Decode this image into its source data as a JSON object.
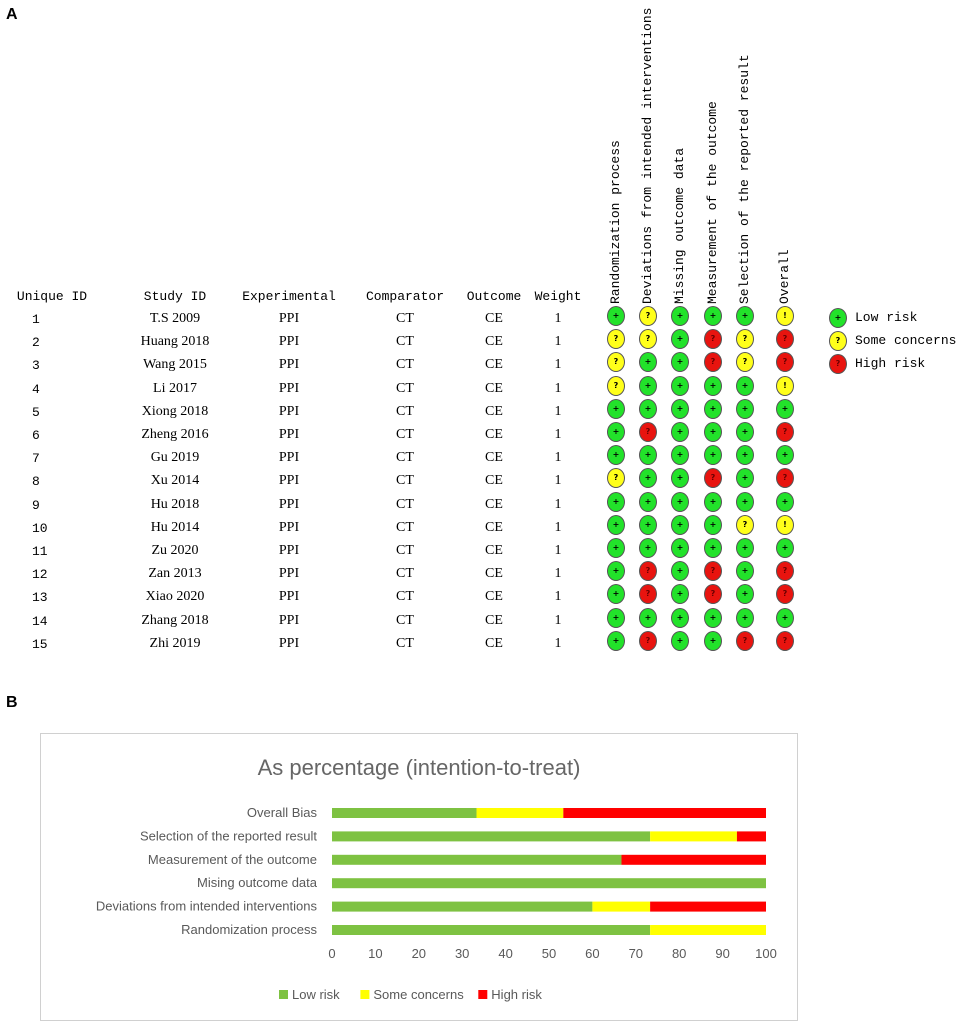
{
  "panel_a_label": "A",
  "panel_b_label": "B",
  "table": {
    "headers": [
      "Unique ID",
      "Study ID",
      "Experimental",
      "Comparator",
      "Outcome",
      "Weight"
    ],
    "domain_headers": [
      "Randomization process",
      "Deviations from intended interventions",
      "Missing outcome data",
      "Measurement of the outcome",
      "Selection of the reported result",
      "Overall"
    ],
    "rows": [
      {
        "id": "1",
        "study": "T.S 2009",
        "exp": "PPI",
        "comp": "CT",
        "outcome": "CE",
        "weight": "1",
        "risk": [
          "low",
          "some",
          "low",
          "low",
          "low",
          "some"
        ]
      },
      {
        "id": "2",
        "study": "Huang 2018",
        "exp": "PPI",
        "comp": "CT",
        "outcome": "CE",
        "weight": "1",
        "risk": [
          "some",
          "some",
          "low",
          "high",
          "some",
          "high"
        ]
      },
      {
        "id": "3",
        "study": "Wang 2015",
        "exp": "PPI",
        "comp": "CT",
        "outcome": "CE",
        "weight": "1",
        "risk": [
          "some",
          "low",
          "low",
          "high",
          "some",
          "high"
        ]
      },
      {
        "id": "4",
        "study": "Li 2017",
        "exp": "PPI",
        "comp": "CT",
        "outcome": "CE",
        "weight": "1",
        "risk": [
          "some",
          "low",
          "low",
          "low",
          "low",
          "some"
        ]
      },
      {
        "id": "5",
        "study": "Xiong 2018",
        "exp": "PPI",
        "comp": "CT",
        "outcome": "CE",
        "weight": "1",
        "risk": [
          "low",
          "low",
          "low",
          "low",
          "low",
          "low"
        ]
      },
      {
        "id": "6",
        "study": "Zheng 2016",
        "exp": "PPI",
        "comp": "CT",
        "outcome": "CE",
        "weight": "1",
        "risk": [
          "low",
          "high",
          "low",
          "low",
          "low",
          "high"
        ]
      },
      {
        "id": "7",
        "study": "Gu 2019",
        "exp": "PPI",
        "comp": "CT",
        "outcome": "CE",
        "weight": "1",
        "risk": [
          "low",
          "low",
          "low",
          "low",
          "low",
          "low"
        ]
      },
      {
        "id": "8",
        "study": "Xu 2014",
        "exp": "PPI",
        "comp": "CT",
        "outcome": "CE",
        "weight": "1",
        "risk": [
          "some",
          "low",
          "low",
          "high",
          "low",
          "high"
        ]
      },
      {
        "id": "9",
        "study": "Hu 2018",
        "exp": "PPI",
        "comp": "CT",
        "outcome": "CE",
        "weight": "1",
        "risk": [
          "low",
          "low",
          "low",
          "low",
          "low",
          "low"
        ]
      },
      {
        "id": "10",
        "study": "Hu 2014",
        "exp": "PPI",
        "comp": "CT",
        "outcome": "CE",
        "weight": "1",
        "risk": [
          "low",
          "low",
          "low",
          "low",
          "some",
          "some"
        ]
      },
      {
        "id": "11",
        "study": "Zu 2020",
        "exp": "PPI",
        "comp": "CT",
        "outcome": "CE",
        "weight": "1",
        "risk": [
          "low",
          "low",
          "low",
          "low",
          "low",
          "low"
        ]
      },
      {
        "id": "12",
        "study": "Zan 2013",
        "exp": "PPI",
        "comp": "CT",
        "outcome": "CE",
        "weight": "1",
        "risk": [
          "low",
          "high",
          "low",
          "high",
          "low",
          "high"
        ]
      },
      {
        "id": "13",
        "study": "Xiao 2020",
        "exp": "PPI",
        "comp": "CT",
        "outcome": "CE",
        "weight": "1",
        "risk": [
          "low",
          "high",
          "low",
          "high",
          "low",
          "high"
        ]
      },
      {
        "id": "14",
        "study": "Zhang 2018",
        "exp": "PPI",
        "comp": "CT",
        "outcome": "CE",
        "weight": "1",
        "risk": [
          "low",
          "low",
          "low",
          "low",
          "low",
          "low"
        ]
      },
      {
        "id": "15",
        "study": "Zhi 2019",
        "exp": "PPI",
        "comp": "CT",
        "outcome": "CE",
        "weight": "1",
        "risk": [
          "low",
          "high",
          "low",
          "low",
          "high",
          "high"
        ]
      }
    ],
    "symbols": {
      "low": "+",
      "some": "?",
      "high": "?",
      "overall_some": "!"
    },
    "legend": [
      {
        "key": "low",
        "symbol": "+",
        "label": "Low risk"
      },
      {
        "key": "some",
        "symbol": "?",
        "label": "Some concerns"
      },
      {
        "key": "high",
        "symbol": "?",
        "label": "High risk"
      }
    ]
  },
  "colors": {
    "dot_low": "#22e22a",
    "dot_some": "#ffff1a",
    "dot_high": "#e8140f",
    "bar_low": "#7ec242",
    "bar_some": "#ffff00",
    "bar_high": "#ff0000",
    "axis_text": "#555555"
  },
  "chart_data": {
    "type": "bar",
    "orientation": "horizontal",
    "stacked": true,
    "title": "As percentage (intention-to-treat)",
    "categories": [
      "Overall Bias",
      "Selection of the reported result",
      "Measurement of the outcome",
      "Mising outcome data",
      "Deviations from intended interventions",
      "Randomization process"
    ],
    "series": [
      {
        "name": "Low risk",
        "color": "#7ec242",
        "values": [
          33.3,
          73.3,
          66.7,
          100,
          60,
          73.3
        ]
      },
      {
        "name": "Some concerns",
        "color": "#ffff00",
        "values": [
          20,
          20,
          0,
          0,
          13.3,
          26.7
        ]
      },
      {
        "name": "High risk",
        "color": "#ff0000",
        "values": [
          46.7,
          6.7,
          33.3,
          0,
          26.7,
          0
        ]
      }
    ],
    "xlim": [
      0,
      100
    ],
    "xticks": [
      "0",
      "10",
      "20",
      "30",
      "40",
      "50",
      "60",
      "70",
      "80",
      "90",
      "100"
    ],
    "xlabel": "",
    "ylabel": "",
    "legend_position": "bottom"
  }
}
